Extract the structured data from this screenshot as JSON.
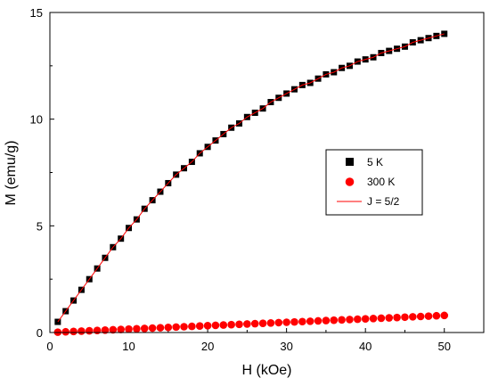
{
  "chart_data": {
    "type": "scatter",
    "xlabel": "H (kOe)",
    "ylabel": "M (emu/g)",
    "xlim": [
      0,
      55
    ],
    "ylim": [
      0,
      15
    ],
    "xticks": [
      0,
      10,
      20,
      30,
      40,
      50
    ],
    "yticks": [
      0,
      5,
      10,
      15
    ],
    "xtick_labels": [
      "0",
      "10",
      "20",
      "30",
      "40",
      "50"
    ],
    "ytick_labels": [
      "0",
      "5",
      "10",
      "15"
    ],
    "grid": false,
    "legend_position": "center-right",
    "series": [
      {
        "name": "5 K",
        "marker": "square",
        "color": "#000000",
        "x": [
          1,
          2,
          3,
          4,
          5,
          6,
          7,
          8,
          9,
          10,
          11,
          12,
          13,
          14,
          15,
          16,
          17,
          18,
          19,
          20,
          21,
          22,
          23,
          24,
          25,
          26,
          27,
          28,
          29,
          30,
          31,
          32,
          33,
          34,
          35,
          36,
          37,
          38,
          39,
          40,
          41,
          42,
          43,
          44,
          45,
          46,
          47,
          48,
          49,
          50
        ],
        "y": [
          0.5,
          1.0,
          1.5,
          2.0,
          2.5,
          3.0,
          3.5,
          4.0,
          4.4,
          4.9,
          5.3,
          5.8,
          6.2,
          6.6,
          7.0,
          7.4,
          7.7,
          8.0,
          8.4,
          8.7,
          9.0,
          9.3,
          9.6,
          9.8,
          10.1,
          10.3,
          10.5,
          10.8,
          11.0,
          11.2,
          11.4,
          11.6,
          11.7,
          11.9,
          12.1,
          12.2,
          12.4,
          12.5,
          12.7,
          12.8,
          12.9,
          13.1,
          13.2,
          13.3,
          13.4,
          13.6,
          13.7,
          13.8,
          13.9,
          14.0
        ]
      },
      {
        "name": "300 K",
        "marker": "circle",
        "color": "#ff0000",
        "x": [
          1,
          2,
          3,
          4,
          5,
          6,
          7,
          8,
          9,
          10,
          11,
          12,
          13,
          14,
          15,
          16,
          17,
          18,
          19,
          20,
          21,
          22,
          23,
          24,
          25,
          26,
          27,
          28,
          29,
          30,
          31,
          32,
          33,
          34,
          35,
          36,
          37,
          38,
          39,
          40,
          41,
          42,
          43,
          44,
          45,
          46,
          47,
          48,
          49,
          50
        ],
        "y": [
          0.016,
          0.032,
          0.048,
          0.064,
          0.08,
          0.096,
          0.112,
          0.128,
          0.144,
          0.16,
          0.176,
          0.192,
          0.208,
          0.224,
          0.24,
          0.256,
          0.272,
          0.288,
          0.304,
          0.32,
          0.336,
          0.352,
          0.368,
          0.384,
          0.4,
          0.416,
          0.432,
          0.448,
          0.464,
          0.48,
          0.496,
          0.512,
          0.528,
          0.544,
          0.56,
          0.576,
          0.592,
          0.608,
          0.624,
          0.64,
          0.656,
          0.672,
          0.688,
          0.704,
          0.72,
          0.736,
          0.752,
          0.768,
          0.784,
          0.8
        ]
      },
      {
        "name": "J = 5/2",
        "type": "line",
        "color": "#ff0000",
        "x": [
          1,
          2,
          3,
          4,
          5,
          6,
          7,
          8,
          9,
          10,
          11,
          12,
          13,
          14,
          15,
          16,
          17,
          18,
          19,
          20,
          21,
          22,
          23,
          24,
          25,
          26,
          27,
          28,
          29,
          30,
          31,
          32,
          33,
          34,
          35,
          36,
          37,
          38,
          39,
          40,
          41,
          42,
          43,
          44,
          45,
          46,
          47,
          48,
          49,
          50
        ],
        "y": [
          0.5,
          1.0,
          1.5,
          2.0,
          2.5,
          3.0,
          3.5,
          4.0,
          4.4,
          4.9,
          5.3,
          5.8,
          6.2,
          6.6,
          7.0,
          7.4,
          7.7,
          8.0,
          8.4,
          8.7,
          9.0,
          9.3,
          9.6,
          9.8,
          10.1,
          10.3,
          10.5,
          10.8,
          11.0,
          11.2,
          11.4,
          11.6,
          11.7,
          11.9,
          12.1,
          12.2,
          12.4,
          12.5,
          12.7,
          12.8,
          12.9,
          13.1,
          13.2,
          13.3,
          13.4,
          13.6,
          13.7,
          13.8,
          13.9,
          14.0
        ]
      }
    ]
  }
}
